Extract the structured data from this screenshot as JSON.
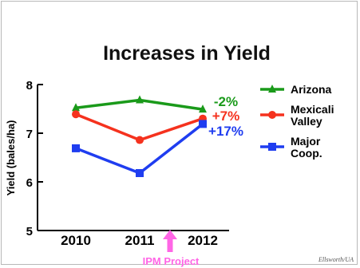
{
  "chart_data": {
    "type": "line",
    "title": "Increases in Yield",
    "ylabel": "Yield (bales/ha)",
    "xlabel": "",
    "categories": [
      "2010",
      "2011",
      "2012"
    ],
    "ylim": [
      5,
      8
    ],
    "yticks": [
      "5",
      "6",
      "7",
      "8"
    ],
    "grid": false,
    "legend_position": "right",
    "series": [
      {
        "name": "Arizona",
        "values": [
          7.52,
          7.68,
          7.49
        ],
        "color": "#1a9a1a",
        "marker": "triangle",
        "change": "-2%"
      },
      {
        "name": "Mexicali Valley",
        "values": [
          7.39,
          6.86,
          7.3
        ],
        "color": "#f5321e",
        "marker": "circle",
        "change": "+7%"
      },
      {
        "name": "Major Coop.",
        "values": [
          6.69,
          6.18,
          7.19
        ],
        "color": "#1f3df0",
        "marker": "square",
        "change": "+17%"
      }
    ],
    "annotations": {
      "arrow_label": "IPM Project",
      "arrow_color": "#ff66e6",
      "credit": "Ellsworth/UA"
    }
  }
}
